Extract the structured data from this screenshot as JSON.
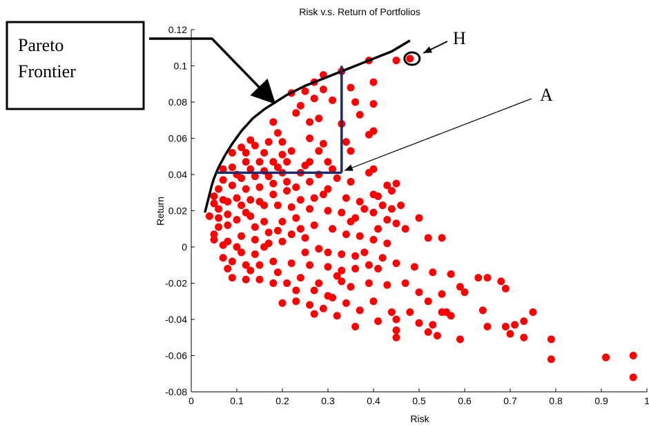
{
  "chart_data": {
    "type": "scatter",
    "title": "Risk v.s. Return of Portfolios",
    "xlabel": "Risk",
    "ylabel": "Return",
    "xlim": [
      0,
      1
    ],
    "ylim": [
      -0.08,
      0.12
    ],
    "xticks": [
      "0",
      "0.1",
      "0.2",
      "0.3",
      "0.4",
      "0.5",
      "0.6",
      "0.7",
      "0.8",
      "0.9",
      "1"
    ],
    "yticks": [
      "0.12",
      "0.1",
      "0.08",
      "0.06",
      "0.04",
      "0.02",
      "0",
      "-0.02",
      "-0.04",
      "-0.06",
      "-0.08"
    ],
    "grid": false,
    "marker_color": "#ff0000",
    "points": [
      [
        0.48,
        0.104
      ],
      [
        0.45,
        0.103
      ],
      [
        0.39,
        0.103
      ],
      [
        0.4,
        0.091
      ],
      [
        0.33,
        0.097
      ],
      [
        0.35,
        0.088
      ],
      [
        0.29,
        0.095
      ],
      [
        0.27,
        0.091
      ],
      [
        0.29,
        0.087
      ],
      [
        0.22,
        0.085
      ],
      [
        0.25,
        0.086
      ],
      [
        0.24,
        0.078
      ],
      [
        0.27,
        0.082
      ],
      [
        0.31,
        0.081
      ],
      [
        0.36,
        0.08
      ],
      [
        0.4,
        0.079
      ],
      [
        0.37,
        0.073
      ],
      [
        0.23,
        0.074
      ],
      [
        0.26,
        0.069
      ],
      [
        0.28,
        0.071
      ],
      [
        0.33,
        0.068
      ],
      [
        0.4,
        0.064
      ],
      [
        0.39,
        0.062
      ],
      [
        0.34,
        0.058
      ],
      [
        0.35,
        0.053
      ],
      [
        0.29,
        0.057
      ],
      [
        0.26,
        0.06
      ],
      [
        0.19,
        0.063
      ],
      [
        0.17,
        0.058
      ],
      [
        0.2,
        0.058
      ],
      [
        0.13,
        0.059
      ],
      [
        0.14,
        0.056
      ],
      [
        0.11,
        0.055
      ],
      [
        0.09,
        0.052
      ],
      [
        0.12,
        0.052
      ],
      [
        0.16,
        0.052
      ],
      [
        0.2,
        0.051
      ],
      [
        0.22,
        0.053
      ],
      [
        0.26,
        0.047
      ],
      [
        0.3,
        0.047
      ],
      [
        0.31,
        0.043
      ],
      [
        0.25,
        0.045
      ],
      [
        0.21,
        0.047
      ],
      [
        0.18,
        0.047
      ],
      [
        0.15,
        0.047
      ],
      [
        0.12,
        0.047
      ],
      [
        0.09,
        0.044
      ],
      [
        0.07,
        0.043
      ],
      [
        0.1,
        0.04
      ],
      [
        0.14,
        0.039
      ],
      [
        0.17,
        0.039
      ],
      [
        0.2,
        0.041
      ],
      [
        0.24,
        0.041
      ],
      [
        0.28,
        0.04
      ],
      [
        0.32,
        0.038
      ],
      [
        0.35,
        0.036
      ],
      [
        0.39,
        0.041
      ],
      [
        0.4,
        0.043
      ],
      [
        0.43,
        0.034
      ],
      [
        0.45,
        0.035
      ],
      [
        0.44,
        0.031
      ],
      [
        0.4,
        0.029
      ],
      [
        0.41,
        0.028
      ],
      [
        0.38,
        0.021
      ],
      [
        0.34,
        0.027
      ],
      [
        0.3,
        0.032
      ],
      [
        0.29,
        0.029
      ],
      [
        0.27,
        0.027
      ],
      [
        0.24,
        0.026
      ],
      [
        0.21,
        0.031
      ],
      [
        0.18,
        0.029
      ],
      [
        0.15,
        0.033
      ],
      [
        0.12,
        0.032
      ],
      [
        0.09,
        0.034
      ],
      [
        0.07,
        0.037
      ],
      [
        0.06,
        0.032
      ],
      [
        0.05,
        0.028
      ],
      [
        0.05,
        0.024
      ],
      [
        0.07,
        0.026
      ],
      [
        0.1,
        0.027
      ],
      [
        0.13,
        0.026
      ],
      [
        0.16,
        0.023
      ],
      [
        0.19,
        0.023
      ],
      [
        0.22,
        0.022
      ],
      [
        0.26,
        0.021
      ],
      [
        0.3,
        0.02
      ],
      [
        0.33,
        0.019
      ],
      [
        0.36,
        0.016
      ],
      [
        0.4,
        0.019
      ],
      [
        0.42,
        0.023
      ],
      [
        0.43,
        0.015
      ],
      [
        0.45,
        0.013
      ],
      [
        0.47,
        0.01
      ],
      [
        0.52,
        0.005
      ],
      [
        0.55,
        0.005
      ],
      [
        0.5,
        0.016
      ],
      [
        0.46,
        0.023
      ],
      [
        0.04,
        0.017
      ],
      [
        0.06,
        0.016
      ],
      [
        0.08,
        0.012
      ],
      [
        0.1,
        0.015
      ],
      [
        0.13,
        0.017
      ],
      [
        0.16,
        0.014
      ],
      [
        0.2,
        0.014
      ],
      [
        0.23,
        0.016
      ],
      [
        0.27,
        0.012
      ],
      [
        0.31,
        0.01
      ],
      [
        0.34,
        0.007
      ],
      [
        0.37,
        0.006
      ],
      [
        0.4,
        0.004
      ],
      [
        0.43,
        0.002
      ],
      [
        0.05,
        0.007
      ],
      [
        0.05,
        0.004
      ],
      [
        0.08,
        0.003
      ],
      [
        0.11,
        0.006
      ],
      [
        0.14,
        0.004
      ],
      [
        0.17,
        0.002
      ],
      [
        0.2,
        0.003
      ],
      [
        0.22,
        0.007
      ],
      [
        0.25,
        0.005
      ],
      [
        0.28,
        -0.001
      ],
      [
        0.3,
        -0.003
      ],
      [
        0.33,
        -0.004
      ],
      [
        0.36,
        -0.005
      ],
      [
        0.38,
        -0.003
      ],
      [
        0.42,
        -0.006
      ],
      [
        0.07,
        -0.006
      ],
      [
        0.09,
        -0.008
      ],
      [
        0.12,
        -0.01
      ],
      [
        0.15,
        -0.01
      ],
      [
        0.18,
        -0.008
      ],
      [
        0.22,
        -0.009
      ],
      [
        0.26,
        -0.01
      ],
      [
        0.3,
        -0.011
      ],
      [
        0.33,
        -0.013
      ],
      [
        0.36,
        -0.012
      ],
      [
        0.39,
        -0.01
      ],
      [
        0.41,
        -0.012
      ],
      [
        0.45,
        -0.009
      ],
      [
        0.49,
        -0.011
      ],
      [
        0.53,
        -0.014
      ],
      [
        0.57,
        -0.015
      ],
      [
        0.09,
        -0.017
      ],
      [
        0.12,
        -0.018
      ],
      [
        0.15,
        -0.018
      ],
      [
        0.18,
        -0.02
      ],
      [
        0.21,
        -0.02
      ],
      [
        0.24,
        -0.017
      ],
      [
        0.28,
        -0.02
      ],
      [
        0.32,
        -0.016
      ],
      [
        0.35,
        -0.022
      ],
      [
        0.39,
        -0.02
      ],
      [
        0.43,
        -0.021
      ],
      [
        0.47,
        -0.02
      ],
      [
        0.5,
        -0.025
      ],
      [
        0.55,
        -0.026
      ],
      [
        0.2,
        -0.031
      ],
      [
        0.23,
        -0.03
      ],
      [
        0.26,
        -0.032
      ],
      [
        0.29,
        -0.034
      ],
      [
        0.31,
        -0.028
      ],
      [
        0.34,
        -0.031
      ],
      [
        0.37,
        -0.035
      ],
      [
        0.4,
        -0.03
      ],
      [
        0.44,
        -0.036
      ],
      [
        0.48,
        -0.036
      ],
      [
        0.52,
        -0.03
      ],
      [
        0.56,
        -0.036
      ],
      [
        0.6,
        -0.025
      ],
      [
        0.27,
        -0.037
      ],
      [
        0.32,
        -0.038
      ],
      [
        0.36,
        -0.044
      ],
      [
        0.41,
        -0.041
      ],
      [
        0.45,
        -0.04
      ],
      [
        0.5,
        -0.042
      ],
      [
        0.53,
        -0.043
      ],
      [
        0.55,
        -0.036
      ],
      [
        0.57,
        -0.038
      ],
      [
        0.59,
        -0.022
      ],
      [
        0.45,
        -0.046
      ],
      [
        0.45,
        -0.05
      ],
      [
        0.52,
        -0.047
      ],
      [
        0.54,
        -0.049
      ],
      [
        0.59,
        -0.051
      ],
      [
        0.63,
        -0.017
      ],
      [
        0.65,
        -0.017
      ],
      [
        0.68,
        -0.019
      ],
      [
        0.69,
        -0.023
      ],
      [
        0.64,
        -0.035
      ],
      [
        0.65,
        -0.044
      ],
      [
        0.69,
        -0.044
      ],
      [
        0.71,
        -0.043
      ],
      [
        0.73,
        -0.041
      ],
      [
        0.75,
        -0.036
      ],
      [
        0.7,
        -0.048
      ],
      [
        0.73,
        -0.05
      ],
      [
        0.79,
        -0.051
      ],
      [
        0.79,
        -0.062
      ],
      [
        0.91,
        -0.061
      ],
      [
        0.91,
        -0.061
      ],
      [
        0.97,
        -0.06
      ],
      [
        0.97,
        -0.072
      ],
      [
        0.28,
        0.053
      ],
      [
        0.18,
        0.069
      ],
      [
        0.12,
        0.019
      ],
      [
        0.06,
        0.021
      ],
      [
        0.08,
        0.025
      ],
      [
        0.11,
        0.023
      ],
      [
        0.14,
        0.011
      ],
      [
        0.17,
        0.008
      ],
      [
        0.19,
        0.009
      ],
      [
        0.24,
        0.01
      ],
      [
        0.25,
        -0.003
      ],
      [
        0.14,
        -0.004
      ],
      [
        0.1,
        0.0
      ],
      [
        0.16,
        0.0
      ],
      [
        0.19,
        -0.014
      ],
      [
        0.23,
        -0.024
      ],
      [
        0.27,
        -0.024
      ],
      [
        0.3,
        -0.027
      ],
      [
        0.08,
        0.018
      ],
      [
        0.15,
        0.025
      ],
      [
        0.21,
        0.036
      ],
      [
        0.23,
        0.033
      ],
      [
        0.18,
        0.035
      ],
      [
        0.13,
        0.043
      ],
      [
        0.11,
        0.038
      ],
      [
        0.16,
        0.042
      ],
      [
        0.19,
        0.044
      ],
      [
        0.26,
        0.036
      ],
      [
        0.35,
        0.014
      ],
      [
        0.37,
        0.025
      ],
      [
        0.41,
        0.01
      ],
      [
        0.44,
        0.021
      ],
      [
        0.33,
        -0.019
      ],
      [
        0.13,
        -0.013
      ],
      [
        0.07,
        0.001
      ],
      [
        0.06,
        0.011
      ],
      [
        0.11,
        -0.003
      ],
      [
        0.08,
        -0.012
      ]
    ],
    "frontier_curve": [
      [
        0.03,
        0.019
      ],
      [
        0.035,
        0.024
      ],
      [
        0.04,
        0.029
      ],
      [
        0.045,
        0.034
      ],
      [
        0.05,
        0.038
      ],
      [
        0.06,
        0.044
      ],
      [
        0.075,
        0.051
      ],
      [
        0.09,
        0.057
      ],
      [
        0.11,
        0.064
      ],
      [
        0.135,
        0.071
      ],
      [
        0.16,
        0.076
      ],
      [
        0.185,
        0.08
      ],
      [
        0.21,
        0.084
      ],
      [
        0.25,
        0.089
      ],
      [
        0.3,
        0.094
      ],
      [
        0.35,
        0.099
      ],
      [
        0.4,
        0.104
      ],
      [
        0.44,
        0.108
      ],
      [
        0.48,
        0.114
      ]
    ],
    "dominance_lines": [
      [
        [
          0.055,
          0.041
        ],
        [
          0.33,
          0.041
        ]
      ],
      [
        [
          0.33,
          0.041
        ],
        [
          0.33,
          0.1
        ]
      ]
    ],
    "highlight_point": [
      0.48,
      0.104
    ],
    "annotations": [
      {
        "label": "H",
        "target": [
          0.485,
          0.104
        ]
      },
      {
        "label": "A",
        "target": [
          0.33,
          0.041
        ]
      }
    ],
    "frontier_label": [
      "Pareto",
      "Frontier"
    ],
    "frontier_label_target": [
      0.19,
      0.083
    ]
  }
}
